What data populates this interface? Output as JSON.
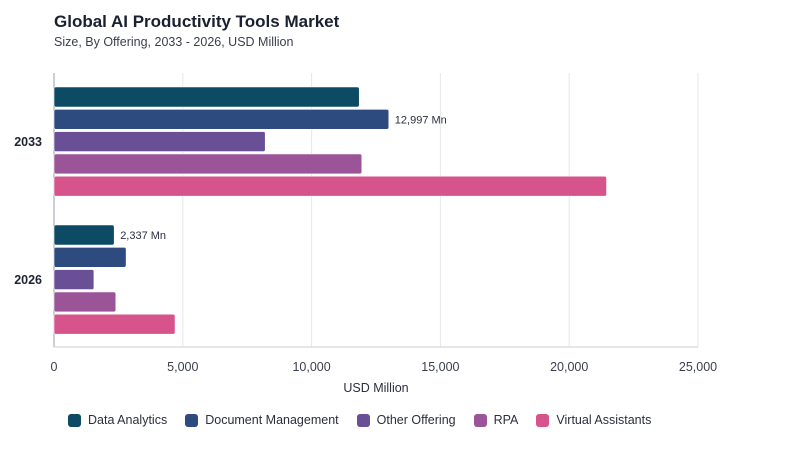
{
  "chart_data": {
    "type": "bar",
    "orientation": "horizontal",
    "title": "Global AI Productivity Tools Market",
    "subtitle": "Size, By Offering, 2033 - 2026, USD Million",
    "xlabel": "USD Million",
    "ylabel": "",
    "xlim": [
      0,
      25000
    ],
    "xticks": [
      0,
      5000,
      10000,
      15000,
      20000,
      25000
    ],
    "xtick_labels": [
      "0",
      "5,000",
      "10,000",
      "15,000",
      "20,000",
      "25,000"
    ],
    "grid": true,
    "legend_position": "bottom",
    "categories": [
      "2033",
      "2026"
    ],
    "series": [
      {
        "name": "Data Analytics",
        "color": "#0d4a63",
        "values": [
          11850,
          2337
        ]
      },
      {
        "name": "Document Management",
        "color": "#2e4b80",
        "values": [
          12997,
          2800
        ]
      },
      {
        "name": "Other Offering",
        "color": "#684f96",
        "values": [
          8200,
          1550
        ]
      },
      {
        "name": "RPA",
        "color": "#9b5498",
        "values": [
          11950,
          2400
        ]
      },
      {
        "name": "Virtual Assistants",
        "color": "#d6538b",
        "values": [
          21450,
          4700
        ]
      }
    ],
    "annotations": [
      {
        "category": "2033",
        "series": "Document Management",
        "text": "12,997 Mn"
      },
      {
        "category": "2026",
        "series": "Data Analytics",
        "text": "2,337 Mn"
      }
    ]
  }
}
